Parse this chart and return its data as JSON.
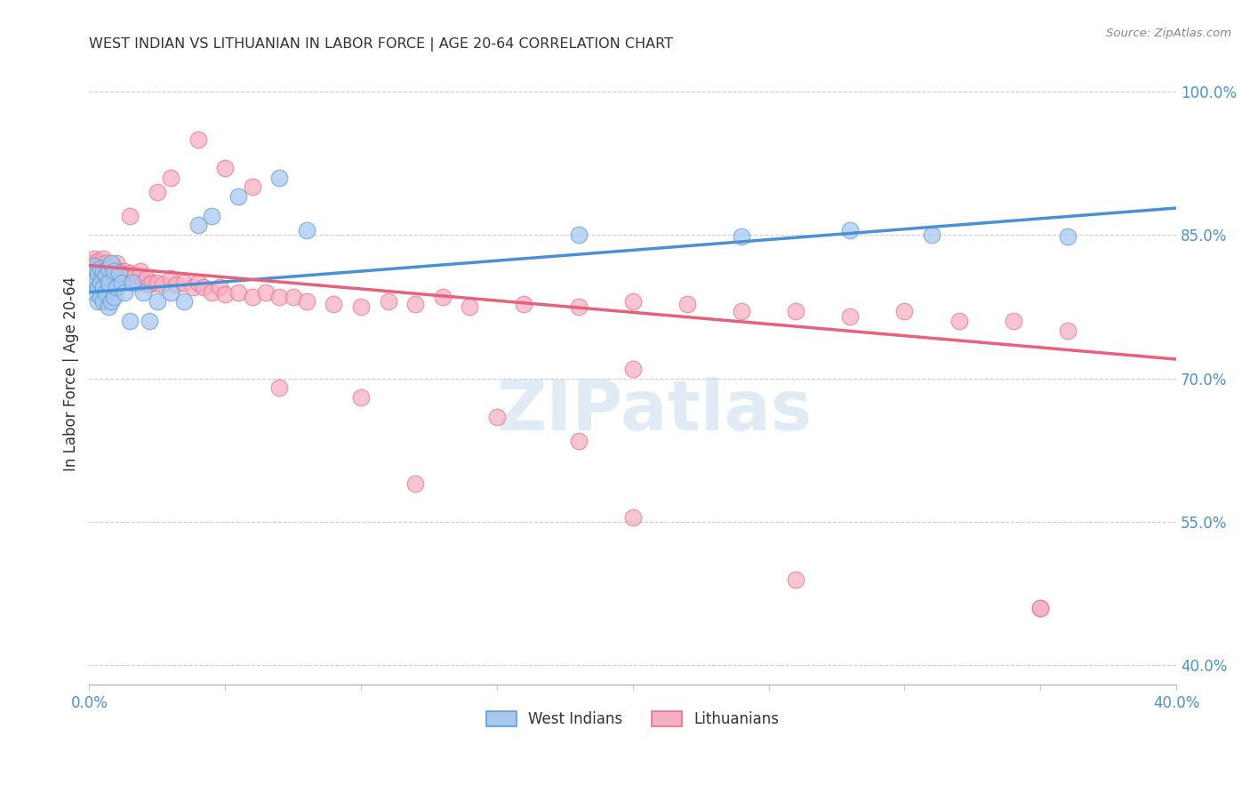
{
  "title": "WEST INDIAN VS LITHUANIAN IN LABOR FORCE | AGE 20-64 CORRELATION CHART",
  "source": "Source: ZipAtlas.com",
  "ylabel": "In Labor Force | Age 20-64",
  "ylabel_right_ticks": [
    "100.0%",
    "85.0%",
    "70.0%",
    "55.0%",
    "40.0%"
  ],
  "ylabel_right_vals": [
    1.0,
    0.85,
    0.7,
    0.55,
    0.4
  ],
  "xlim": [
    0.0,
    0.4
  ],
  "ylim": [
    0.38,
    1.03
  ],
  "watermark_text": "ZIPatlas",
  "blue_fill": "#A8C8F0",
  "pink_fill": "#F5B0C0",
  "blue_edge": "#5A9FD4",
  "pink_edge": "#E87090",
  "blue_line": "#4A90D9",
  "pink_line": "#E8607A",
  "blue_label": "West Indians",
  "pink_label": "Lithuanians",
  "right_axis_color": "#4A90D9",
  "grid_color": "#CCCCCC",
  "title_color": "#333333",
  "wi_trend_y0": 0.79,
  "wi_trend_y1": 0.878,
  "lt_trend_y0": 0.818,
  "lt_trend_y1": 0.72,
  "west_indian_x": [
    0.001,
    0.002,
    0.002,
    0.003,
    0.003,
    0.003,
    0.004,
    0.004,
    0.004,
    0.005,
    0.005,
    0.005,
    0.006,
    0.006,
    0.007,
    0.007,
    0.007,
    0.008,
    0.008,
    0.009,
    0.009,
    0.01,
    0.011,
    0.012,
    0.013,
    0.015,
    0.016,
    0.02,
    0.022,
    0.025,
    0.03,
    0.035,
    0.04,
    0.045,
    0.055,
    0.07,
    0.08,
    0.18,
    0.24,
    0.28,
    0.31,
    0.36
  ],
  "west_indian_y": [
    0.8,
    0.818,
    0.79,
    0.81,
    0.795,
    0.78,
    0.815,
    0.8,
    0.785,
    0.812,
    0.795,
    0.78,
    0.808,
    0.79,
    0.815,
    0.8,
    0.775,
    0.82,
    0.78,
    0.812,
    0.785,
    0.795,
    0.81,
    0.8,
    0.79,
    0.76,
    0.8,
    0.79,
    0.76,
    0.78,
    0.79,
    0.78,
    0.86,
    0.87,
    0.89,
    0.91,
    0.855,
    0.85,
    0.848,
    0.855,
    0.85,
    0.848
  ],
  "lithuanian_x": [
    0.001,
    0.001,
    0.002,
    0.002,
    0.002,
    0.003,
    0.003,
    0.003,
    0.003,
    0.004,
    0.004,
    0.004,
    0.004,
    0.005,
    0.005,
    0.005,
    0.005,
    0.006,
    0.006,
    0.006,
    0.007,
    0.007,
    0.007,
    0.008,
    0.008,
    0.008,
    0.009,
    0.009,
    0.01,
    0.01,
    0.01,
    0.011,
    0.012,
    0.013,
    0.014,
    0.015,
    0.016,
    0.017,
    0.018,
    0.019,
    0.02,
    0.021,
    0.022,
    0.023,
    0.025,
    0.027,
    0.03,
    0.032,
    0.035,
    0.038,
    0.04,
    0.042,
    0.045,
    0.048,
    0.05,
    0.055,
    0.06,
    0.065,
    0.07,
    0.075,
    0.08,
    0.09,
    0.1,
    0.11,
    0.12,
    0.13,
    0.14,
    0.16,
    0.18,
    0.2,
    0.22,
    0.24,
    0.26,
    0.28,
    0.3,
    0.32,
    0.34,
    0.36,
    0.015,
    0.025,
    0.03,
    0.04,
    0.05,
    0.06,
    0.07,
    0.1,
    0.15,
    0.2,
    0.26,
    0.35,
    0.2,
    0.18,
    0.12,
    0.35
  ],
  "lithuanian_y": [
    0.82,
    0.815,
    0.825,
    0.812,
    0.8,
    0.822,
    0.815,
    0.808,
    0.795,
    0.82,
    0.812,
    0.8,
    0.79,
    0.825,
    0.815,
    0.805,
    0.795,
    0.82,
    0.81,
    0.8,
    0.818,
    0.808,
    0.795,
    0.815,
    0.805,
    0.79,
    0.818,
    0.808,
    0.82,
    0.81,
    0.795,
    0.812,
    0.808,
    0.812,
    0.805,
    0.81,
    0.805,
    0.808,
    0.8,
    0.812,
    0.8,
    0.805,
    0.798,
    0.8,
    0.8,
    0.798,
    0.805,
    0.798,
    0.8,
    0.795,
    0.8,
    0.795,
    0.79,
    0.795,
    0.788,
    0.79,
    0.785,
    0.79,
    0.785,
    0.785,
    0.78,
    0.778,
    0.775,
    0.78,
    0.778,
    0.785,
    0.775,
    0.778,
    0.775,
    0.78,
    0.778,
    0.77,
    0.77,
    0.765,
    0.77,
    0.76,
    0.76,
    0.75,
    0.87,
    0.895,
    0.91,
    0.95,
    0.92,
    0.9,
    0.69,
    0.68,
    0.66,
    0.555,
    0.49,
    0.46,
    0.71,
    0.635,
    0.59,
    0.46
  ]
}
